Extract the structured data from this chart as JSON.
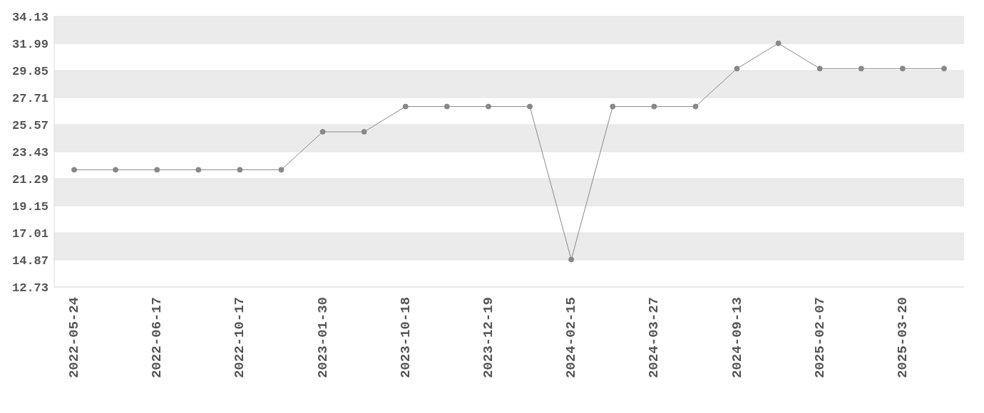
{
  "chart_data": {
    "type": "line",
    "categories": [
      "2022-05-24",
      null,
      "2022-06-17",
      null,
      "2022-10-17",
      null,
      "2023-01-30",
      null,
      "2023-10-18",
      null,
      "2023-12-19",
      null,
      "2024-02-15",
      null,
      "2024-03-27",
      null,
      "2024-09-13",
      null,
      "2025-02-07",
      null,
      "2025-03-20",
      null
    ],
    "series": [
      {
        "color": "#888888",
        "values": [
          22.0,
          22.0,
          22.0,
          22.0,
          22.0,
          22.0,
          25.0,
          25.0,
          27.0,
          27.0,
          27.0,
          27.0,
          14.9,
          27.0,
          27.0,
          27.0,
          30.0,
          32.0,
          30.0,
          30.0,
          30.0,
          30.0
        ]
      }
    ],
    "ylim": [
      12.73,
      34.13
    ],
    "yticks": [
      12.73,
      14.87,
      17.01,
      19.15,
      21.29,
      23.43,
      25.57,
      27.71,
      29.85,
      31.99,
      34.13
    ],
    "grid": "y",
    "marker": "circle",
    "line_style": "solid"
  }
}
